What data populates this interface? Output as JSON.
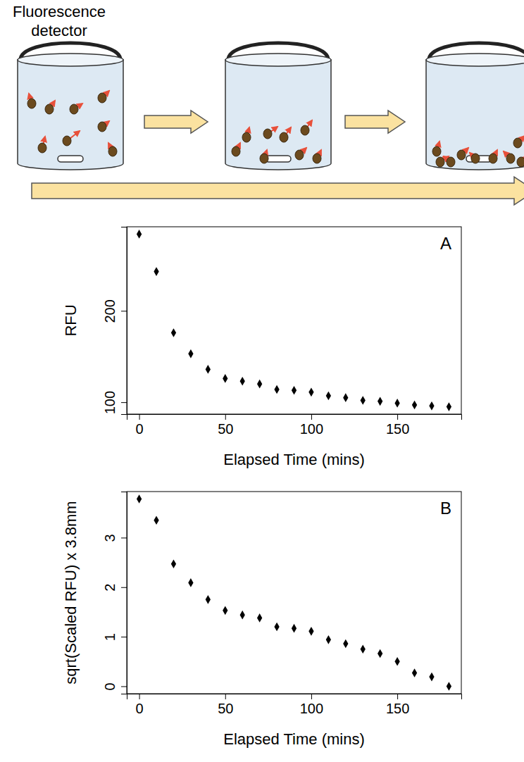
{
  "diagram": {
    "label": "Fluorescence detector"
  },
  "chart_data": [
    {
      "type": "scatter",
      "title": "A",
      "x_label": "Elapsed Time (mins)",
      "y_label": "RFU",
      "x": [
        0,
        10,
        20,
        30,
        40,
        50,
        60,
        70,
        80,
        90,
        100,
        110,
        120,
        130,
        140,
        150,
        160,
        170,
        180
      ],
      "values": [
        284,
        243,
        176,
        153,
        136,
        126,
        123,
        120,
        114,
        113,
        111,
        107,
        105,
        102,
        101,
        99,
        97,
        96,
        95
      ],
      "color": "#000000",
      "marker": "diamond",
      "xlim": [
        -7.2,
        187.2
      ],
      "xticks": [
        0,
        50,
        100,
        150
      ],
      "ylim": [
        87,
        292
      ],
      "yticks": [
        100,
        200
      ],
      "grid": false
    },
    {
      "type": "scatter",
      "title": "B",
      "x_label": "Elapsed Time (mins)",
      "y_label": "sqrt(Scaled RFU) x 3.8mm",
      "x": [
        0,
        10,
        20,
        30,
        40,
        50,
        60,
        70,
        80,
        90,
        100,
        110,
        120,
        130,
        140,
        150,
        160,
        170,
        180
      ],
      "values": [
        3.78,
        3.35,
        2.47,
        2.09,
        1.75,
        1.53,
        1.44,
        1.38,
        1.2,
        1.17,
        1.11,
        0.94,
        0.86,
        0.75,
        0.66,
        0.5,
        0.27,
        0.19,
        0.0
      ],
      "color": "#000000",
      "marker": "diamond",
      "xlim": [
        -7.2,
        187.2
      ],
      "xticks": [
        0,
        50,
        100,
        150
      ],
      "ylim": [
        -0.15,
        3.93
      ],
      "yticks": [
        0,
        1,
        2,
        3
      ],
      "grid": false
    }
  ]
}
